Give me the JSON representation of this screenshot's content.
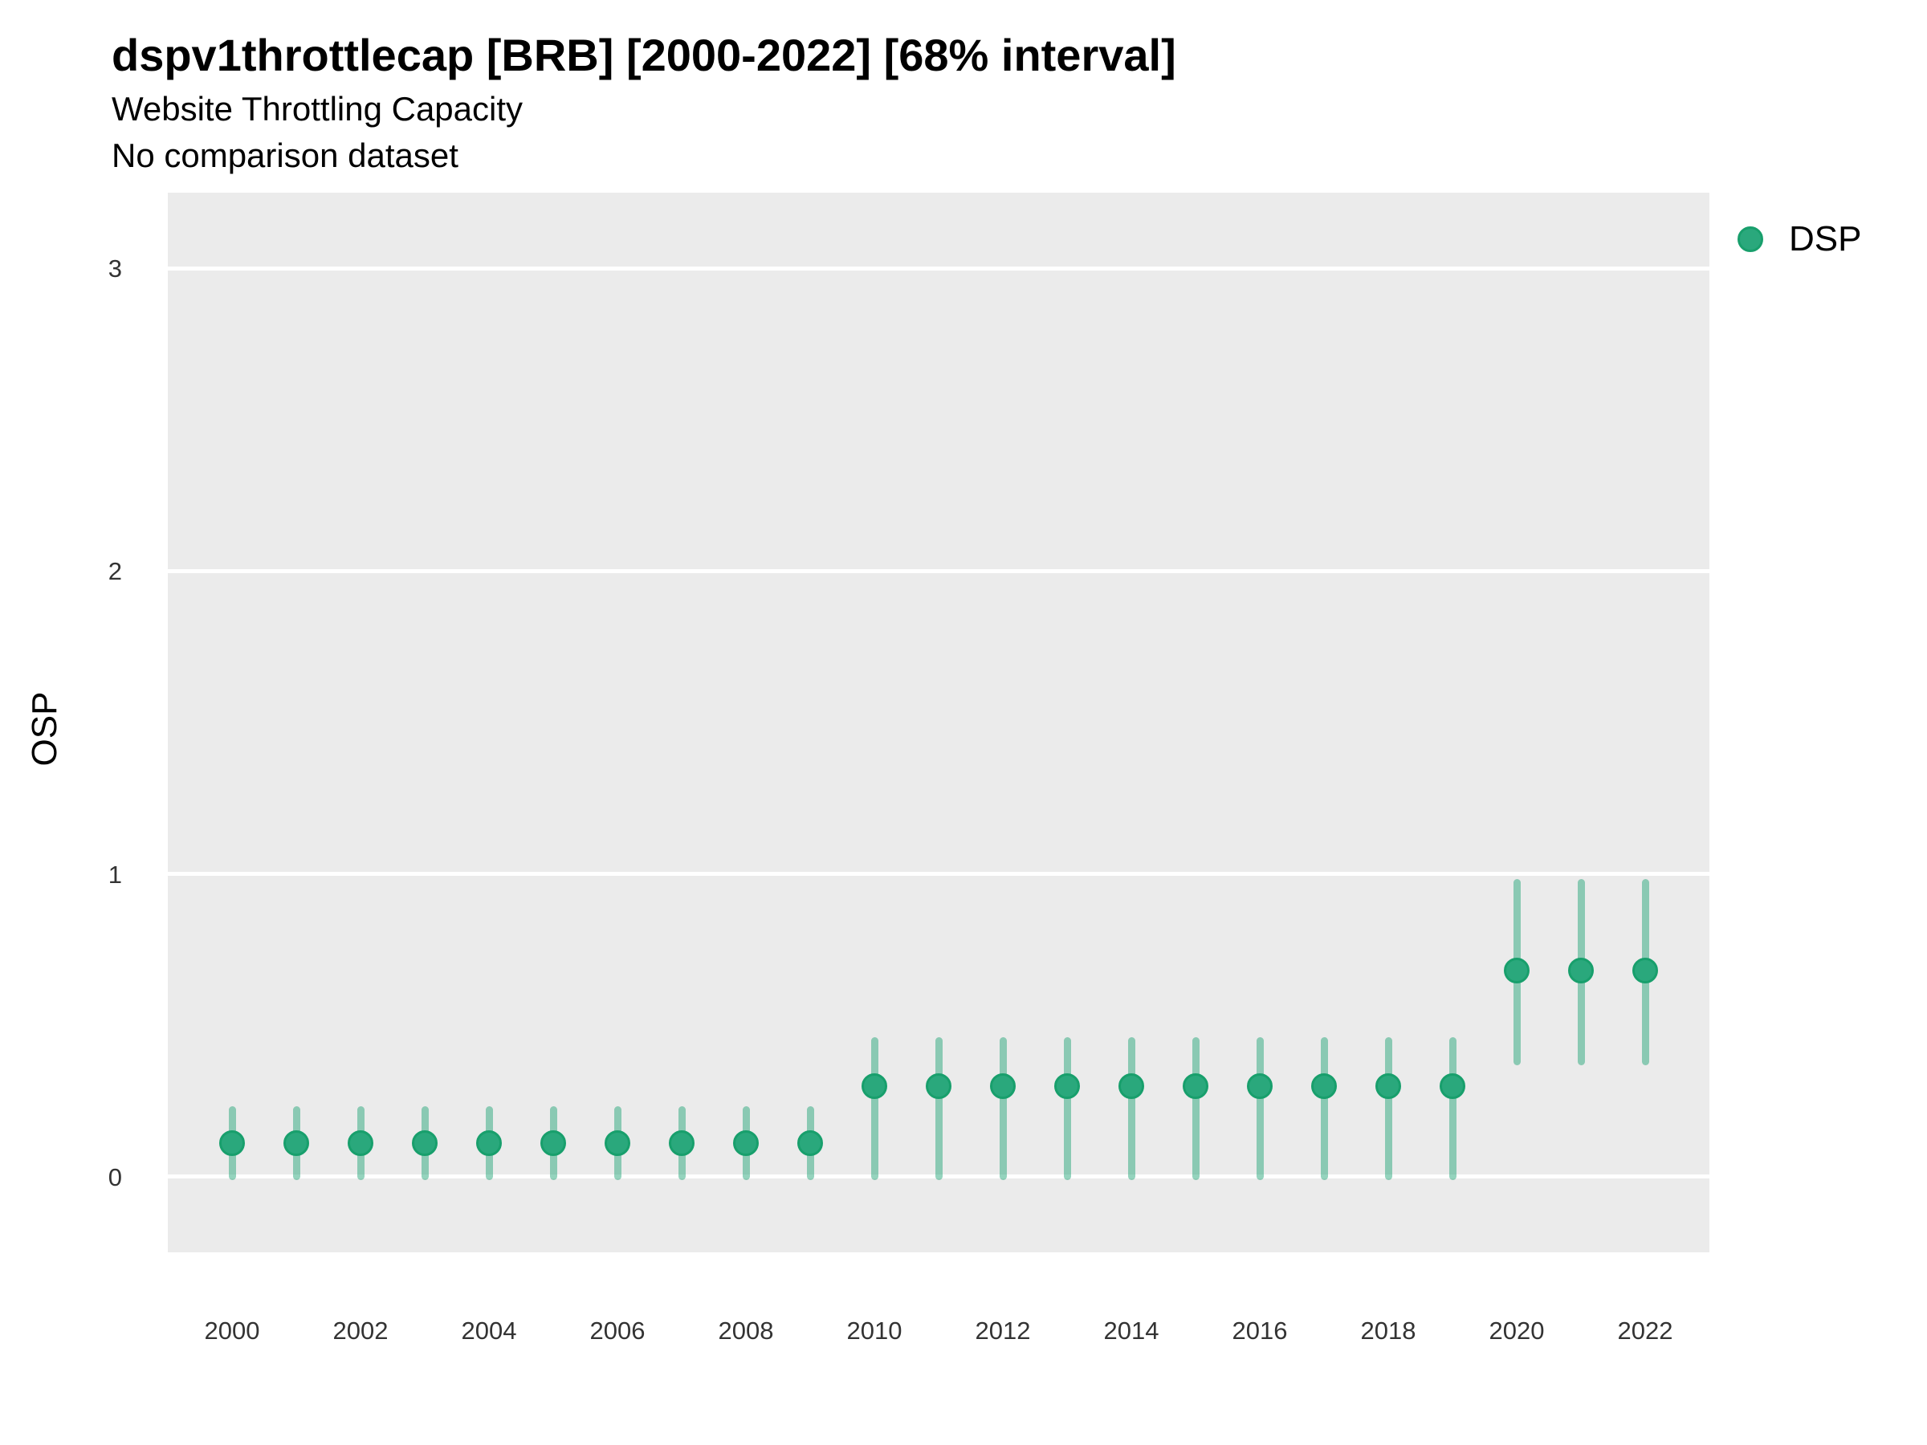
{
  "header": {
    "title": "dspv1throttlecap [BRB] [2000-2022] [68% interval]",
    "subtitle": "Website Throttling Capacity",
    "note": "No comparison dataset"
  },
  "legend": {
    "position": "top-right",
    "items": [
      {
        "label": "DSP",
        "color": "#2aa87c"
      }
    ]
  },
  "colors": {
    "panel_background": "#ebebeb",
    "gridline": "#ffffff",
    "point_fill": "#2aa87c",
    "point_stroke": "#189f6c",
    "interval_bar": "rgba(42,168,124,0.5)",
    "tick_text": "#333333",
    "title_text": "#000000"
  },
  "chart_data": {
    "type": "scatter",
    "subtype": "pointrange-interval",
    "title": "dspv1throttlecap [BRB] [2000-2022] [68% interval]",
    "subtitle": "Website Throttling Capacity",
    "note": "No comparison dataset",
    "interval": "68%",
    "xlabel": "",
    "ylabel": "OSP",
    "grid": "horizontal-major",
    "legend_position": "top-right",
    "xlim": [
      1999,
      2023
    ],
    "ylim": [
      -0.25,
      3.25
    ],
    "x_ticks": [
      2000,
      2002,
      2004,
      2006,
      2008,
      2010,
      2012,
      2014,
      2016,
      2018,
      2020,
      2022
    ],
    "y_ticks": [
      0,
      1,
      2,
      3
    ],
    "series": [
      {
        "name": "DSP",
        "color": "#2aa87c",
        "points": [
          {
            "x": 2000,
            "y": 0.11,
            "lo": 0.0,
            "hi": 0.22
          },
          {
            "x": 2001,
            "y": 0.11,
            "lo": 0.0,
            "hi": 0.22
          },
          {
            "x": 2002,
            "y": 0.11,
            "lo": 0.0,
            "hi": 0.22
          },
          {
            "x": 2003,
            "y": 0.11,
            "lo": 0.0,
            "hi": 0.22
          },
          {
            "x": 2004,
            "y": 0.11,
            "lo": 0.0,
            "hi": 0.22
          },
          {
            "x": 2005,
            "y": 0.11,
            "lo": 0.0,
            "hi": 0.22
          },
          {
            "x": 2006,
            "y": 0.11,
            "lo": 0.0,
            "hi": 0.22
          },
          {
            "x": 2007,
            "y": 0.11,
            "lo": 0.0,
            "hi": 0.22
          },
          {
            "x": 2008,
            "y": 0.11,
            "lo": 0.0,
            "hi": 0.22
          },
          {
            "x": 2009,
            "y": 0.11,
            "lo": 0.0,
            "hi": 0.22
          },
          {
            "x": 2010,
            "y": 0.3,
            "lo": 0.0,
            "hi": 0.45
          },
          {
            "x": 2011,
            "y": 0.3,
            "lo": 0.0,
            "hi": 0.45
          },
          {
            "x": 2012,
            "y": 0.3,
            "lo": 0.0,
            "hi": 0.45
          },
          {
            "x": 2013,
            "y": 0.3,
            "lo": 0.0,
            "hi": 0.45
          },
          {
            "x": 2014,
            "y": 0.3,
            "lo": 0.0,
            "hi": 0.45
          },
          {
            "x": 2015,
            "y": 0.3,
            "lo": 0.0,
            "hi": 0.45
          },
          {
            "x": 2016,
            "y": 0.3,
            "lo": 0.0,
            "hi": 0.45
          },
          {
            "x": 2017,
            "y": 0.3,
            "lo": 0.0,
            "hi": 0.45
          },
          {
            "x": 2018,
            "y": 0.3,
            "lo": 0.0,
            "hi": 0.45
          },
          {
            "x": 2019,
            "y": 0.3,
            "lo": 0.0,
            "hi": 0.45
          },
          {
            "x": 2020,
            "y": 0.68,
            "lo": 0.38,
            "hi": 0.97
          },
          {
            "x": 2021,
            "y": 0.68,
            "lo": 0.38,
            "hi": 0.97
          },
          {
            "x": 2022,
            "y": 0.68,
            "lo": 0.38,
            "hi": 0.97
          }
        ]
      }
    ]
  }
}
